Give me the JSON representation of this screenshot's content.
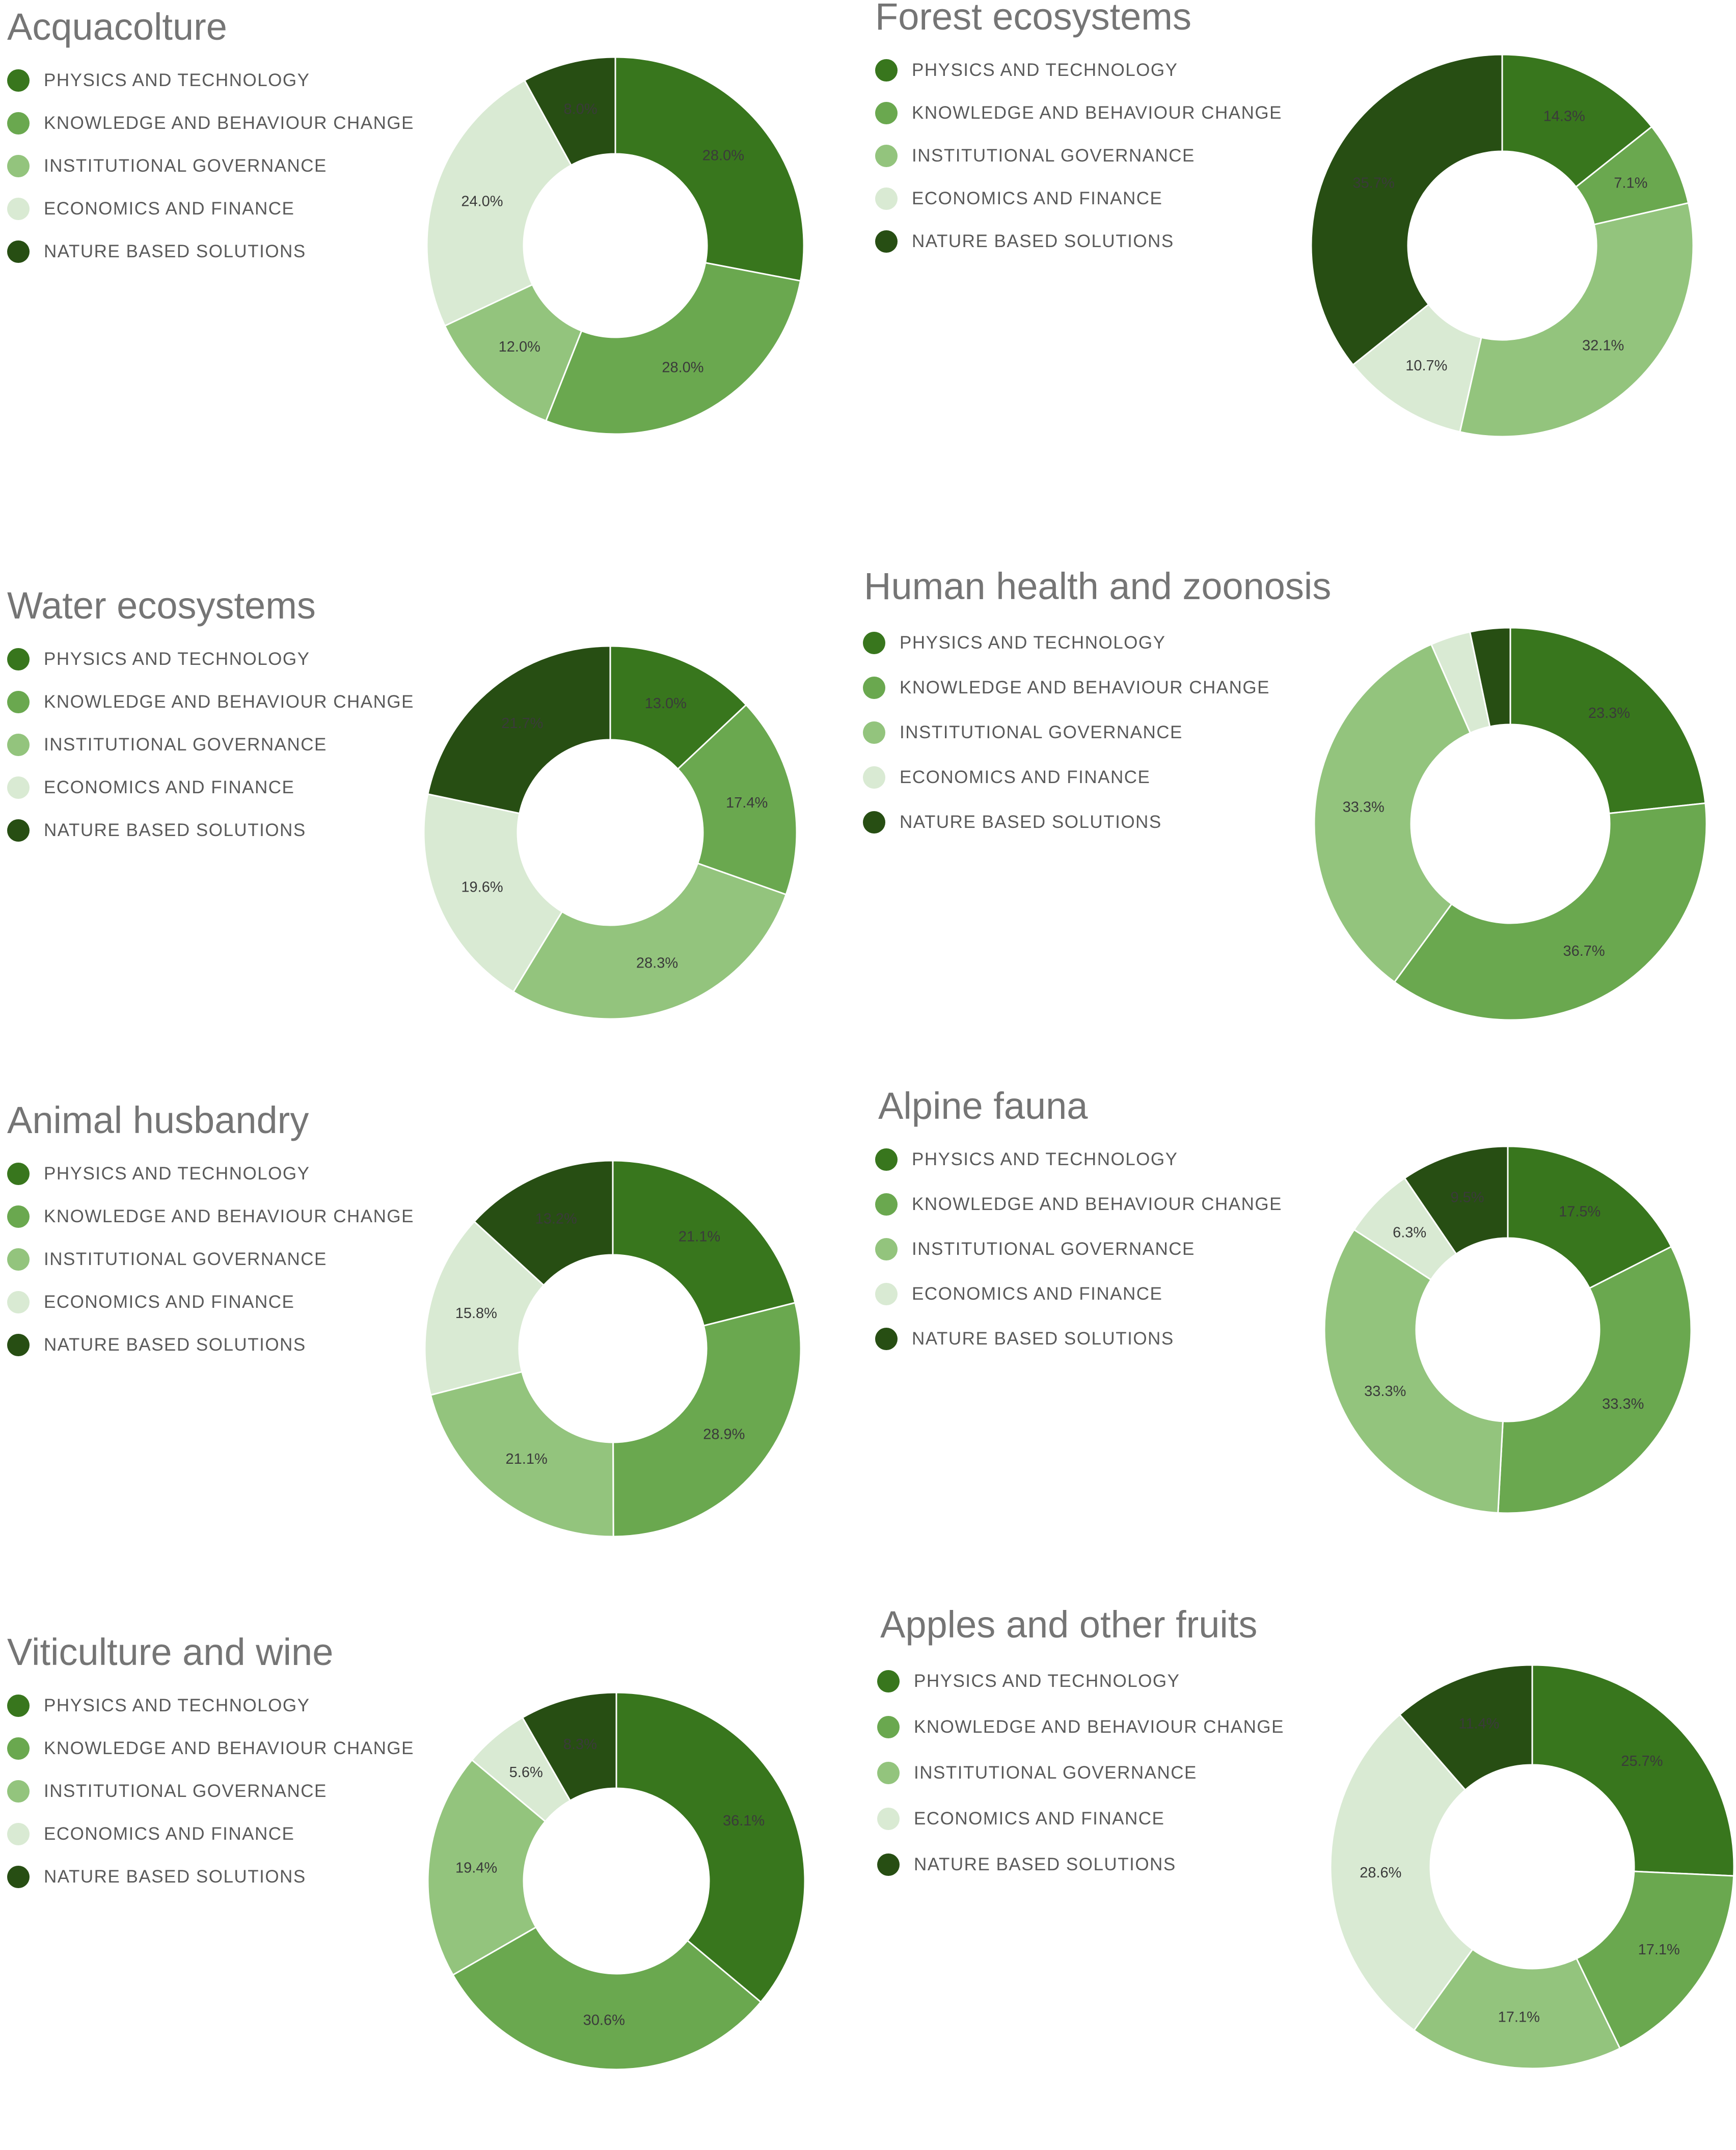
{
  "legend": [
    "PHYSICS AND TECHNOLOGY",
    "KNOWLEDGE AND BEHAVIOUR CHANGE",
    "INSTITUTIONAL GOVERNANCE",
    "ECONOMICS AND FINANCE",
    "NATURE BASED SOLUTIONS"
  ],
  "colors": [
    "#38761d",
    "#6aa84f",
    "#93c47d",
    "#d9ead3",
    "#274e13"
  ],
  "label_colors": [
    "#333333",
    "#333333",
    "#333333",
    "#333333",
    "#cccccc"
  ],
  "chart_data": [
    {
      "type": "pie",
      "donut": true,
      "title": "Acquacolture",
      "categories": [
        "PHYSICS AND TECHNOLOGY",
        "KNOWLEDGE AND BEHAVIOUR CHANGE",
        "INSTITUTIONAL GOVERNANCE",
        "ECONOMICS AND FINANCE",
        "NATURE BASED SOLUTIONS"
      ],
      "values": [
        28.0,
        28.0,
        12.0,
        24.0,
        8.0
      ],
      "labels": [
        "28.0%",
        "28.0%",
        "12.0%",
        "24.0%",
        "8.0%"
      ]
    },
    {
      "type": "pie",
      "donut": true,
      "title": "Forest ecosystems",
      "categories": [
        "PHYSICS AND TECHNOLOGY",
        "KNOWLEDGE AND BEHAVIOUR CHANGE",
        "INSTITUTIONAL GOVERNANCE",
        "ECONOMICS AND FINANCE",
        "NATURE BASED SOLUTIONS"
      ],
      "values": [
        14.3,
        7.1,
        32.1,
        10.7,
        35.7
      ],
      "labels": [
        "14.3%",
        "7.1%",
        "32.1%",
        "10.7%",
        "35.7%"
      ]
    },
    {
      "type": "pie",
      "donut": true,
      "title": "Water ecosystems",
      "categories": [
        "PHYSICS AND TECHNOLOGY",
        "KNOWLEDGE AND BEHAVIOUR CHANGE",
        "INSTITUTIONAL GOVERNANCE",
        "ECONOMICS AND FINANCE",
        "NATURE BASED SOLUTIONS"
      ],
      "values": [
        13.0,
        17.4,
        28.3,
        19.6,
        21.7
      ],
      "labels": [
        "13.0%",
        "17.4%",
        "28.3%",
        "19.6%",
        "21.7%"
      ]
    },
    {
      "type": "pie",
      "donut": true,
      "title": "Human health and zoonosis",
      "categories": [
        "PHYSICS AND TECHNOLOGY",
        "KNOWLEDGE AND BEHAVIOUR CHANGE",
        "INSTITUTIONAL GOVERNANCE",
        "ECONOMICS AND FINANCE",
        "NATURE BASED SOLUTIONS"
      ],
      "values": [
        23.3,
        36.7,
        33.3,
        3.3,
        3.3
      ],
      "labels": [
        "23.3%",
        "36.7%",
        "33.3%",
        "",
        ""
      ]
    },
    {
      "type": "pie",
      "donut": true,
      "title": "Animal husbandry",
      "categories": [
        "PHYSICS AND TECHNOLOGY",
        "KNOWLEDGE AND BEHAVIOUR CHANGE",
        "INSTITUTIONAL GOVERNANCE",
        "ECONOMICS AND FINANCE",
        "NATURE BASED SOLUTIONS"
      ],
      "values": [
        21.1,
        28.9,
        21.1,
        15.8,
        13.2
      ],
      "labels": [
        "21.1%",
        "28.9%",
        "21.1%",
        "15.8%",
        "13.2%"
      ]
    },
    {
      "type": "pie",
      "donut": true,
      "title": "Alpine fauna",
      "categories": [
        "PHYSICS AND TECHNOLOGY",
        "KNOWLEDGE AND BEHAVIOUR CHANGE",
        "INSTITUTIONAL GOVERNANCE",
        "ECONOMICS AND FINANCE",
        "NATURE BASED SOLUTIONS"
      ],
      "values": [
        17.5,
        33.3,
        33.3,
        6.3,
        9.5
      ],
      "labels": [
        "17.5%",
        "33.3%",
        "33.3%",
        "6.3%",
        "9.5%"
      ]
    },
    {
      "type": "pie",
      "donut": true,
      "title": "Viticulture and wine",
      "categories": [
        "PHYSICS AND TECHNOLOGY",
        "KNOWLEDGE AND BEHAVIOUR CHANGE",
        "INSTITUTIONAL GOVERNANCE",
        "ECONOMICS AND FINANCE",
        "NATURE BASED SOLUTIONS"
      ],
      "values": [
        36.1,
        30.6,
        19.4,
        5.6,
        8.3
      ],
      "labels": [
        "36.1%",
        "30.6%",
        "19.4%",
        "5.6%",
        "8.3%"
      ]
    },
    {
      "type": "pie",
      "donut": true,
      "title": "Apples and other fruits",
      "categories": [
        "PHYSICS AND TECHNOLOGY",
        "KNOWLEDGE AND BEHAVIOUR CHANGE",
        "INSTITUTIONAL GOVERNANCE",
        "ECONOMICS AND FINANCE",
        "NATURE BASED SOLUTIONS"
      ],
      "values": [
        25.7,
        17.1,
        17.1,
        28.6,
        11.4
      ],
      "labels": [
        "25.7%",
        "17.1%",
        "17.1%",
        "28.6%",
        "11.4%"
      ]
    }
  ]
}
